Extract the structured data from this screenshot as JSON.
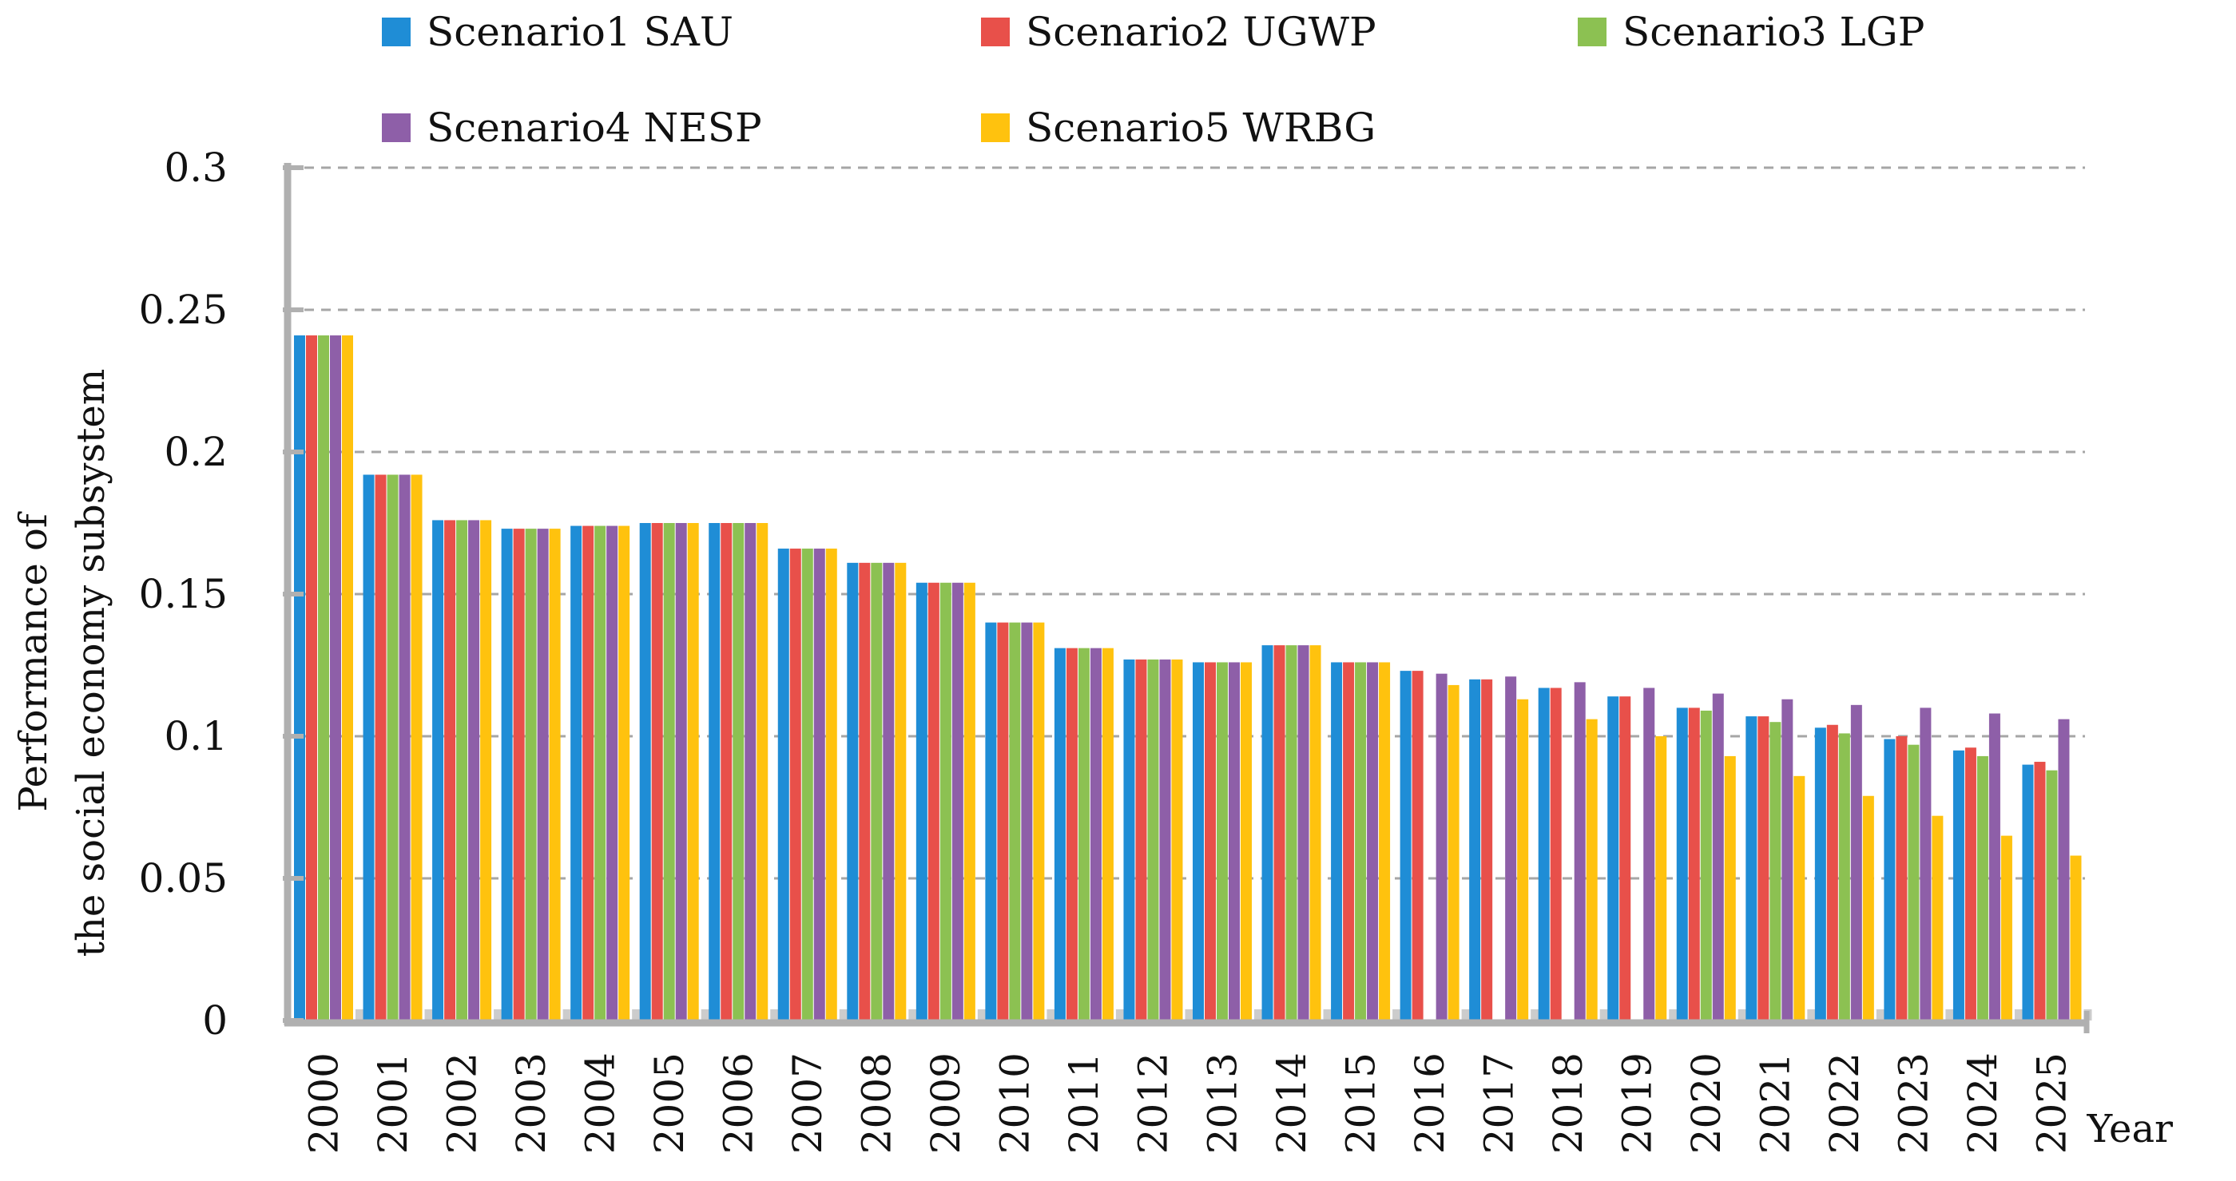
{
  "chart_data": {
    "type": "bar",
    "title": "",
    "xlabel": "Year",
    "ylabel_lines": [
      "Performance of",
      "the social economy subsystem"
    ],
    "ylim": [
      0,
      0.3
    ],
    "yticks": [
      0,
      0.05,
      0.1,
      0.15,
      0.2,
      0.25,
      0.3
    ],
    "ytick_labels": [
      "0",
      "0.05",
      "0.1",
      "0.15",
      "0.2",
      "0.25",
      "0.3"
    ],
    "grid": "horizontal dashed",
    "legend_position": "top",
    "categories": [
      "2000",
      "2001",
      "2002",
      "2003",
      "2004",
      "2005",
      "2006",
      "2007",
      "2008",
      "2009",
      "2010",
      "2011",
      "2012",
      "2013",
      "2014",
      "2015",
      "2016",
      "2017",
      "2018",
      "2019",
      "2020",
      "2021",
      "2022",
      "2023",
      "2024",
      "2025"
    ],
    "series": [
      {
        "name": "Scenario1 SAU",
        "color": "#1f8dd6",
        "values": [
          0.241,
          0.192,
          0.176,
          0.173,
          0.174,
          0.175,
          0.175,
          0.166,
          0.161,
          0.154,
          0.14,
          0.131,
          0.127,
          0.126,
          0.132,
          0.126,
          0.123,
          0.12,
          0.117,
          0.114,
          0.11,
          0.107,
          0.103,
          0.099,
          0.095,
          0.09
        ]
      },
      {
        "name": "Scenario2 UGWP",
        "color": "#e8504a",
        "values": [
          0.241,
          0.192,
          0.176,
          0.173,
          0.174,
          0.175,
          0.175,
          0.166,
          0.161,
          0.154,
          0.14,
          0.131,
          0.127,
          0.126,
          0.132,
          0.126,
          0.123,
          0.12,
          0.117,
          0.114,
          0.11,
          0.107,
          0.104,
          0.1,
          0.096,
          0.091
        ]
      },
      {
        "name": "Scenario3 LGP",
        "color": "#8cc152",
        "values": [
          0.241,
          0.192,
          0.176,
          0.173,
          0.174,
          0.175,
          0.175,
          0.166,
          0.161,
          0.154,
          0.14,
          0.131,
          0.127,
          0.126,
          0.132,
          0.126,
          0.0,
          0.0,
          0.0,
          0.0,
          0.109,
          0.105,
          0.101,
          0.097,
          0.093,
          0.088
        ]
      },
      {
        "name": "Scenario4 NESP",
        "color": "#8e5fa8",
        "values": [
          0.241,
          0.192,
          0.176,
          0.173,
          0.174,
          0.175,
          0.175,
          0.166,
          0.161,
          0.154,
          0.14,
          0.131,
          0.127,
          0.126,
          0.132,
          0.126,
          0.122,
          0.121,
          0.119,
          0.117,
          0.115,
          0.113,
          0.111,
          0.11,
          0.108,
          0.106
        ]
      },
      {
        "name": "Scenario5 WRBG",
        "color": "#ffc20e",
        "values": [
          0.241,
          0.192,
          0.176,
          0.173,
          0.174,
          0.175,
          0.175,
          0.166,
          0.161,
          0.154,
          0.14,
          0.131,
          0.127,
          0.126,
          0.132,
          0.126,
          0.118,
          0.113,
          0.106,
          0.1,
          0.093,
          0.086,
          0.079,
          0.072,
          0.065,
          0.058
        ]
      }
    ]
  },
  "colors": {
    "axis": "#b0b0b0",
    "grid": "#a6a6a6",
    "gap_marker": "#cccccc"
  }
}
